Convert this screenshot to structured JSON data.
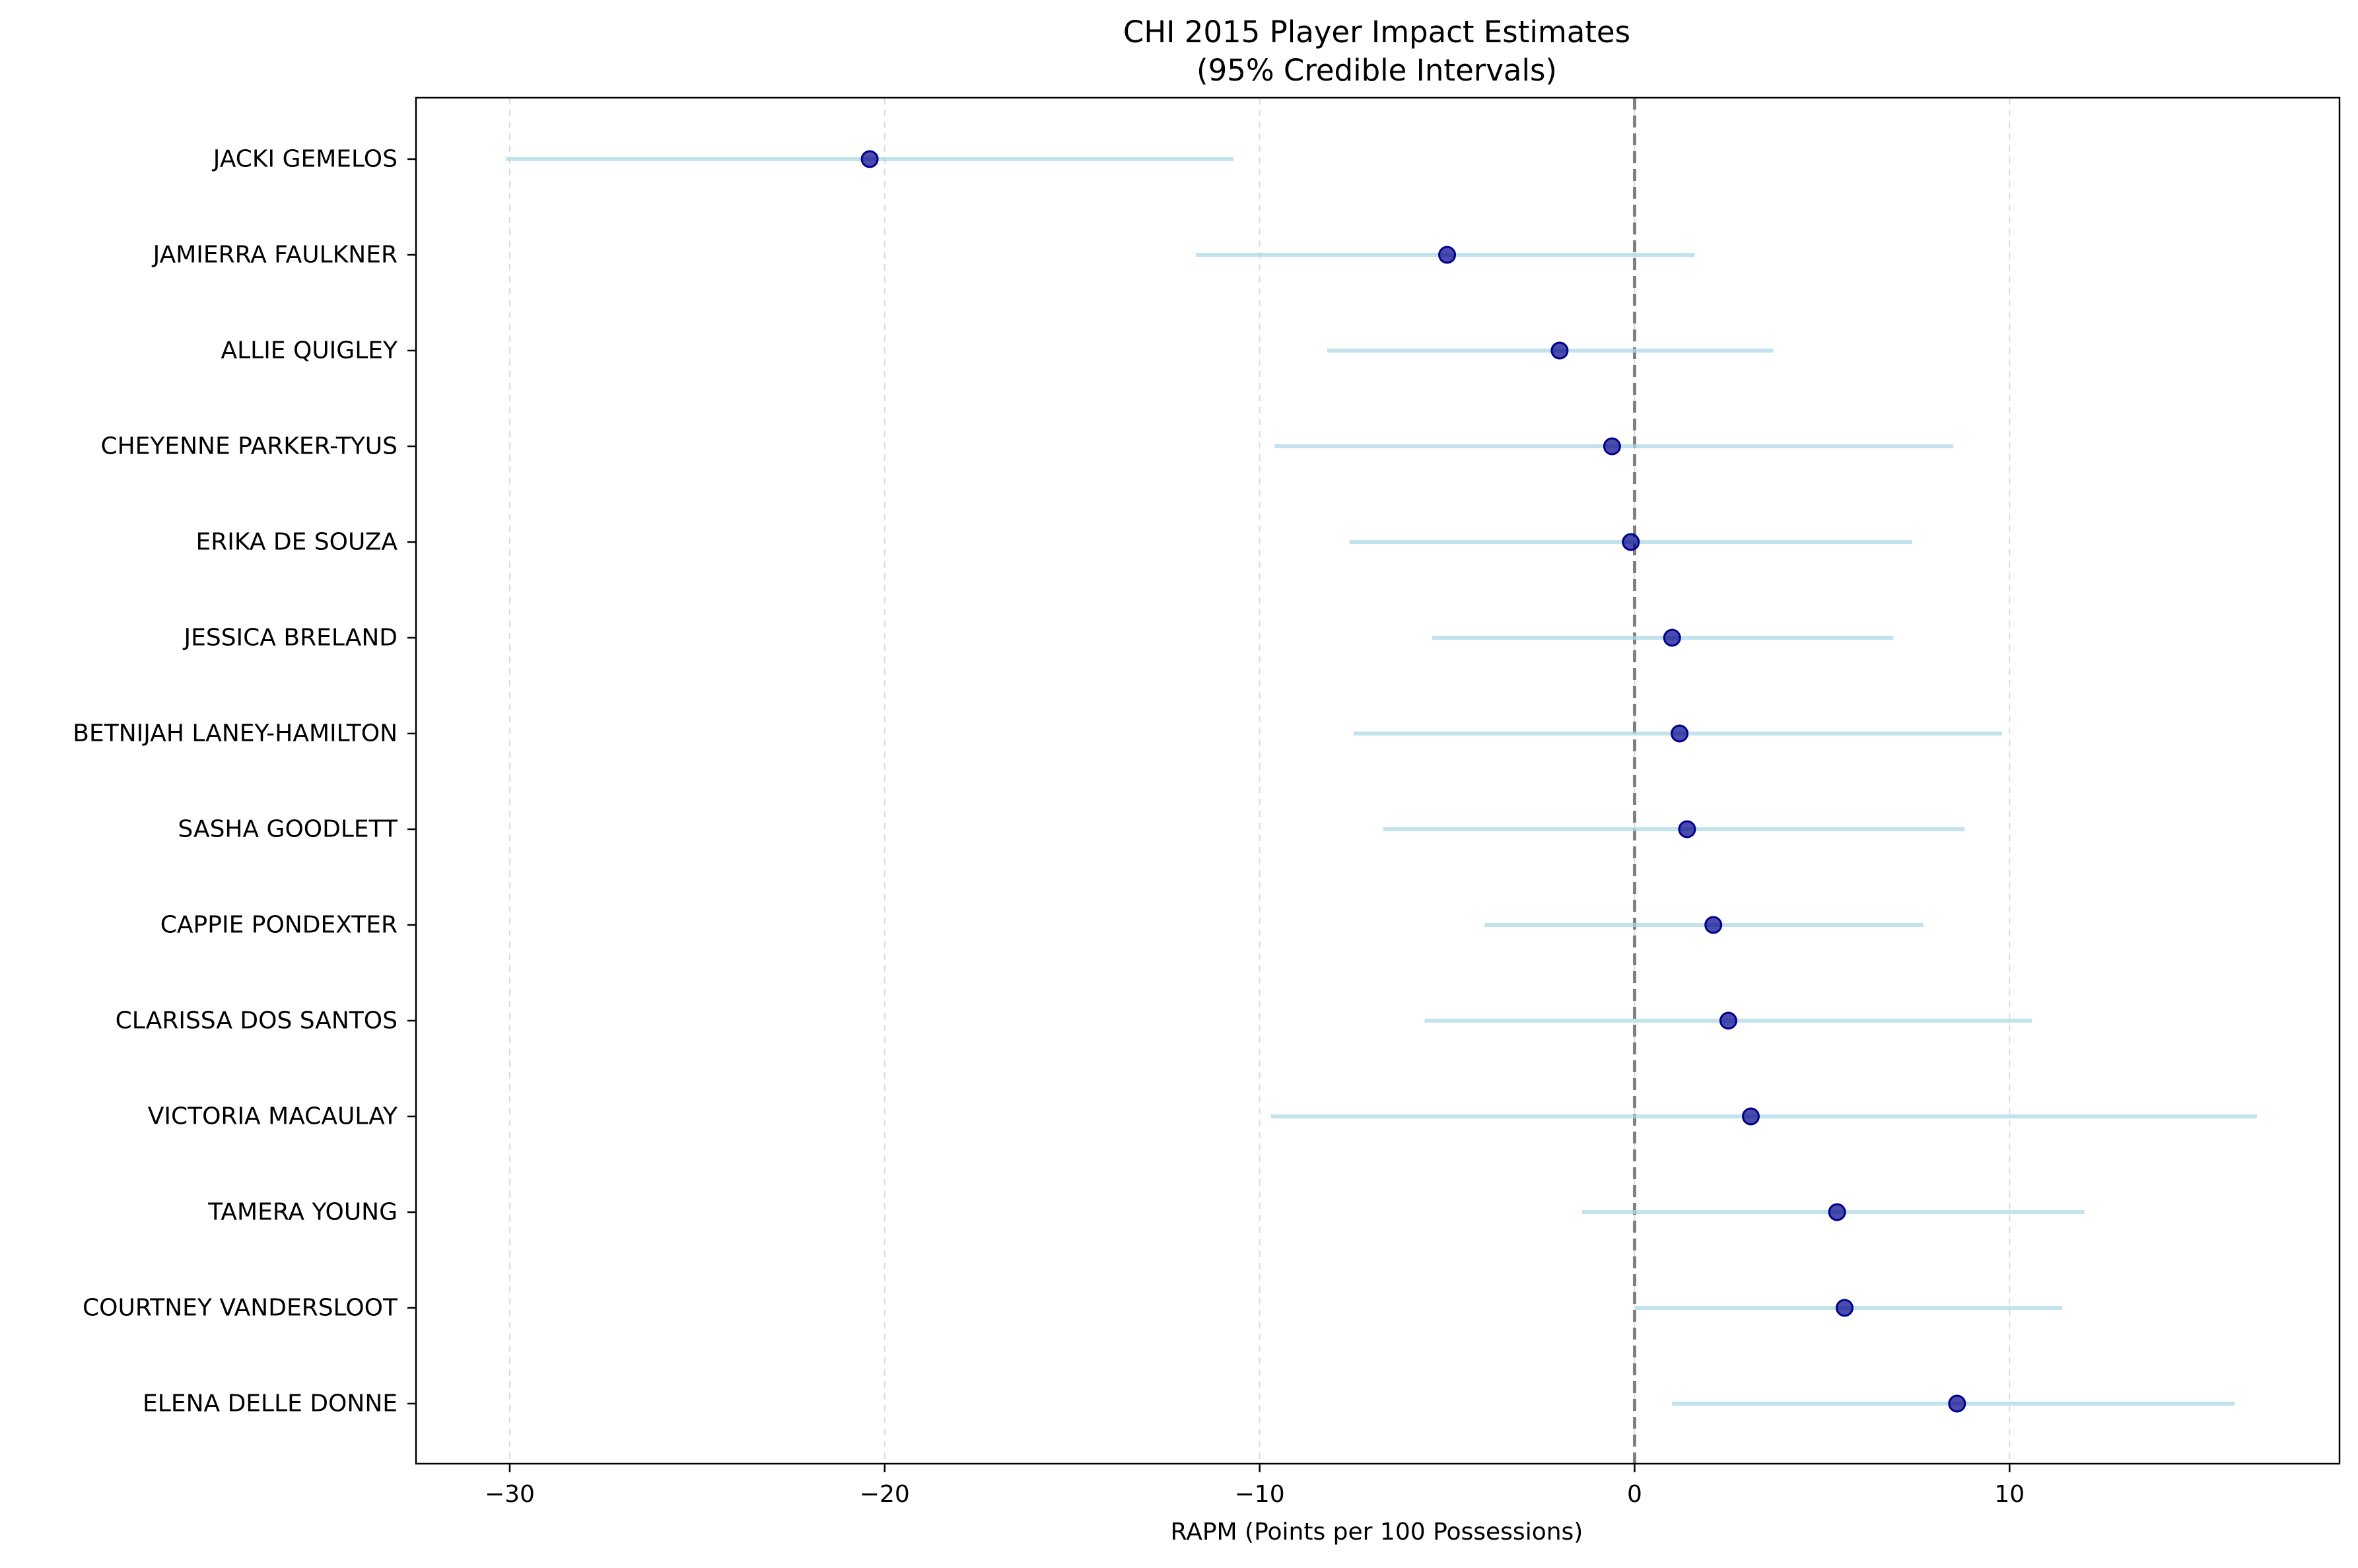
{
  "chart_data": {
    "type": "scatter",
    "subtype": "forest-plot",
    "title": "CHI 2015 Player Impact Estimates",
    "subtitle": "(95% Credible Intervals)",
    "xlabel": "RAPM (Points per 100 Possessions)",
    "ylabel": "",
    "xlim": [
      -32.5,
      18.8
    ],
    "x_ticks": [
      -30,
      -20,
      -10,
      0,
      10
    ],
    "x_tick_labels": [
      "−30",
      "−20",
      "−10",
      "0",
      "10"
    ],
    "grid": "x-axis only, dashed",
    "reference_line": {
      "x": 0,
      "style": "dashed",
      "color": "#808080"
    },
    "colors": {
      "point": "#00008b",
      "interval": "#add8e6",
      "reference": "#808080",
      "axis": "#000000",
      "grid": "#dcdcdc"
    },
    "players": [
      {
        "name": "JACKI GEMELOS",
        "estimate": -20.4,
        "lower": -30.1,
        "upper": -10.7
      },
      {
        "name": "JAMIERRA FAULKNER",
        "estimate": -5.0,
        "lower": -11.7,
        "upper": 1.6
      },
      {
        "name": "ALLIE QUIGLEY",
        "estimate": -2.0,
        "lower": -8.2,
        "upper": 3.7
      },
      {
        "name": "CHEYENNE PARKER-TYUS",
        "estimate": -0.6,
        "lower": -9.6,
        "upper": 8.5
      },
      {
        "name": "ERIKA DE SOUZA",
        "estimate": -0.1,
        "lower": -7.6,
        "upper": 7.4
      },
      {
        "name": "JESSICA BRELAND",
        "estimate": 1.0,
        "lower": -5.4,
        "upper": 6.9
      },
      {
        "name": "BETNIJAH LANEY-HAMILTON",
        "estimate": 1.2,
        "lower": -7.5,
        "upper": 9.8
      },
      {
        "name": "SASHA GOODLETT",
        "estimate": 1.4,
        "lower": -6.7,
        "upper": 8.8
      },
      {
        "name": "CAPPIE PONDEXTER",
        "estimate": 2.1,
        "lower": -4.0,
        "upper": 7.7
      },
      {
        "name": "CLARISSA DOS SANTOS",
        "estimate": 2.5,
        "lower": -5.6,
        "upper": 10.6
      },
      {
        "name": "VICTORIA MACAULAY",
        "estimate": 3.1,
        "lower": -9.7,
        "upper": 16.6
      },
      {
        "name": "TAMERA YOUNG",
        "estimate": 5.4,
        "lower": -1.4,
        "upper": 12.0
      },
      {
        "name": "COURTNEY VANDERSLOOT",
        "estimate": 5.6,
        "lower": 0.0,
        "upper": 11.4
      },
      {
        "name": "ELENA DELLE DONNE",
        "estimate": 8.6,
        "lower": 1.0,
        "upper": 16.0
      }
    ]
  }
}
